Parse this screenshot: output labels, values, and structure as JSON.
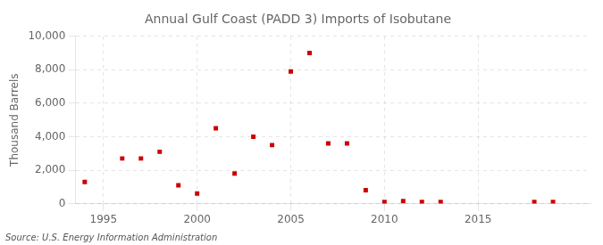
{
  "chart_data": {
    "type": "scatter",
    "title": "Annual Gulf Coast (PADD 3) Imports of Isobutane",
    "ylabel": "Thousand Barrels",
    "annotations": [
      "Source: U.S. Energy Information Administration"
    ],
    "x": [
      1994,
      1996,
      1997,
      1998,
      1999,
      2000,
      2001,
      2002,
      2003,
      2004,
      2005,
      2006,
      2007,
      2008,
      2009,
      2010,
      2011,
      2012,
      2013,
      2018,
      2019
    ],
    "values": [
      1300,
      2700,
      2700,
      3100,
      1100,
      600,
      4500,
      1800,
      4000,
      3500,
      7900,
      9000,
      3600,
      3600,
      800,
      100,
      150,
      100,
      100,
      100,
      100
    ],
    "color": "#cc0000",
    "marker": "square",
    "xlim": [
      1993.5,
      2021
    ],
    "ylim": [
      0,
      10000
    ],
    "xticks": [
      1995,
      2000,
      2005,
      2010,
      2015
    ],
    "yticks": [
      0,
      {
        "value": 2000,
        "label": "2,000"
      },
      {
        "value": 4000,
        "label": "4,000"
      },
      {
        "value": 6000,
        "label": "6,000"
      },
      {
        "value": 8000,
        "label": "8,000"
      },
      {
        "value": 10000,
        "label": "10,000"
      }
    ],
    "grid": true
  }
}
